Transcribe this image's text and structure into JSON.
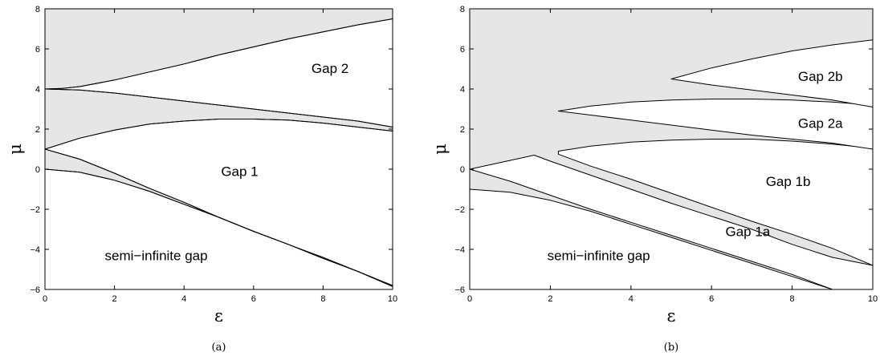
{
  "chart_data": [
    {
      "type": "area",
      "caption": "(a)",
      "xlabel": "ε",
      "ylabel": "μ",
      "xlim": [
        0,
        10
      ],
      "ylim": [
        -6,
        8
      ],
      "xticks": [
        0,
        2,
        4,
        6,
        8,
        10
      ],
      "yticks": [
        -6,
        -4,
        -2,
        0,
        2,
        4,
        6,
        8
      ],
      "band_fill": "#e6e6e6",
      "gap_fill": "#ffffff",
      "curves": [
        {
          "x": [
            0,
            1,
            2,
            3,
            4,
            5,
            6,
            7,
            8,
            9,
            10
          ],
          "y": [
            0,
            -0.15,
            -0.55,
            -1.1,
            -1.75,
            -2.4,
            -3.1,
            -3.75,
            -4.4,
            -5.1,
            -5.8
          ]
        },
        {
          "x": [
            0,
            1,
            2,
            3,
            4,
            5,
            6,
            7,
            8,
            9,
            10
          ],
          "y": [
            1,
            0.5,
            -0.2,
            -0.95,
            -1.65,
            -2.4,
            -3.1,
            -3.75,
            -4.45,
            -5.1,
            -5.85
          ]
        },
        {
          "x": [
            0,
            1,
            2,
            3,
            4,
            5,
            6,
            7,
            8,
            9,
            10
          ],
          "y": [
            1,
            1.55,
            1.95,
            2.25,
            2.4,
            2.5,
            2.5,
            2.45,
            2.3,
            2.1,
            1.9
          ]
        },
        {
          "x": [
            0,
            1,
            2,
            3,
            4,
            5,
            6,
            7,
            8,
            9,
            10
          ],
          "y": [
            4,
            3.95,
            3.8,
            3.6,
            3.4,
            3.2,
            3.0,
            2.8,
            2.6,
            2.4,
            2.1
          ]
        },
        {
          "x": [
            0,
            0.5,
            1,
            2,
            3,
            4,
            5,
            6,
            7,
            8,
            9,
            10
          ],
          "y": [
            4,
            4.03,
            4.12,
            4.45,
            4.85,
            5.25,
            5.7,
            6.1,
            6.5,
            6.85,
            7.2,
            7.5
          ]
        }
      ],
      "gaps": [
        {
          "label": "semi−infinite gap",
          "x": 3.2,
          "y": -4.3
        },
        {
          "label": "Gap 1",
          "x": 5.6,
          "y": -0.1
        },
        {
          "label": "Gap 2",
          "x": 8.2,
          "y": 5.05
        }
      ]
    },
    {
      "type": "area",
      "caption": "(b)",
      "xlabel": "ε",
      "ylabel": "μ",
      "xlim": [
        0,
        10
      ],
      "ylim": [
        -6,
        8
      ],
      "xticks": [
        0,
        2,
        4,
        6,
        8,
        10
      ],
      "yticks": [
        -6,
        -4,
        -2,
        0,
        2,
        4,
        6,
        8
      ],
      "band_fill": "#e6e6e6",
      "gap_fill": "#ffffff",
      "semi_gap_upper": {
        "x": [
          0,
          1,
          2,
          3,
          4,
          5,
          6,
          7,
          8,
          9
        ],
        "y": [
          -1,
          -1.15,
          -1.55,
          -2.1,
          -2.75,
          -3.4,
          -4.05,
          -4.7,
          -5.35,
          -6
        ]
      },
      "gap1a": {
        "lower": {
          "x": [
            0,
            1,
            2,
            3,
            4,
            5,
            6,
            7,
            8,
            9
          ],
          "y": [
            0,
            -0.6,
            -1.3,
            -2.0,
            -2.65,
            -3.3,
            -3.95,
            -4.6,
            -5.25,
            -6
          ]
        },
        "upper": {
          "x": [
            0,
            0.8,
            1.6,
            2,
            3,
            4,
            5,
            6,
            7,
            8,
            9,
            10
          ],
          "y": [
            0,
            0.35,
            0.7,
            0.4,
            -0.3,
            -1.0,
            -1.7,
            -2.35,
            -3.0,
            -3.75,
            -4.4,
            -4.8
          ]
        }
      },
      "gap1b": {
        "x": [
          2.2,
          3,
          4,
          5,
          6,
          7,
          8,
          9,
          10
        ],
        "lower": [
          0.75,
          0.15,
          -0.5,
          -1.2,
          -1.9,
          -2.6,
          -3.25,
          -3.95,
          -4.8
        ],
        "upper": [
          0.9,
          1.15,
          1.35,
          1.45,
          1.5,
          1.5,
          1.4,
          1.25,
          1.05
        ]
      },
      "gap2a": {
        "x": [
          2.2,
          3,
          4,
          5,
          6,
          7,
          8,
          9,
          10
        ],
        "lower": [
          2.9,
          2.7,
          2.45,
          2.2,
          1.95,
          1.7,
          1.5,
          1.3,
          1.0
        ],
        "upper": [
          2.9,
          3.15,
          3.35,
          3.45,
          3.5,
          3.5,
          3.45,
          3.35,
          3.2
        ]
      },
      "gap2b": {
        "x": [
          5,
          6,
          7,
          8,
          9,
          10
        ],
        "lower": [
          4.5,
          4.2,
          3.95,
          3.7,
          3.45,
          3.1
        ],
        "upper": [
          4.5,
          5.05,
          5.5,
          5.9,
          6.2,
          6.45
        ]
      },
      "gaps": [
        {
          "label": "semi−infinite gap",
          "x": 3.2,
          "y": -4.3
        },
        {
          "label": "Gap 1a",
          "x": 6.9,
          "y": -3.1
        },
        {
          "label": "Gap 1b",
          "x": 7.9,
          "y": -0.6
        },
        {
          "label": "Gap 2a",
          "x": 8.7,
          "y": 2.3
        },
        {
          "label": "Gap 2b",
          "x": 8.7,
          "y": 4.65
        }
      ]
    }
  ]
}
